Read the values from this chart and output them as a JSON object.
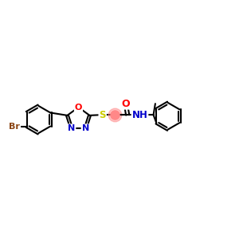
{
  "bg_color": "#ffffff",
  "bond_color": "#000000",
  "N_color": "#0000cc",
  "O_color": "#ff0000",
  "S_color": "#cccc00",
  "Br_color": "#8B4513",
  "C_color": "#000000",
  "bond_width": 1.5,
  "dbo": 0.06,
  "xlim": [
    0,
    10
  ],
  "ylim": [
    3,
    8
  ]
}
